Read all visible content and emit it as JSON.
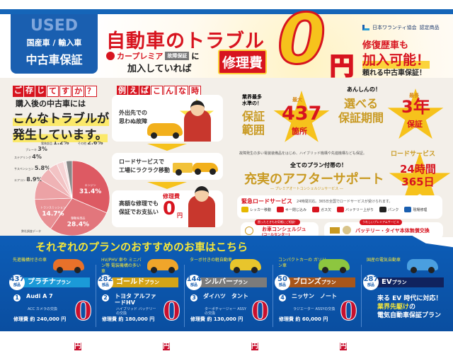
{
  "header": {
    "used_badge": {
      "used": "USED",
      "types": "国産車 / 輸入車",
      "label": "中古車保証"
    },
    "title": "自動車のトラブル",
    "brand": "カープレミア",
    "brand_tag": "故障保証",
    "particle": "に",
    "joined": "加入していれば",
    "repair_cost": "修理費",
    "zero": "0",
    "yen": "円",
    "association": "日本ワランティ協会",
    "certified": "認定商品",
    "right_line1": "修復歴車も",
    "right_line2": "加入可能！",
    "right_line3": "頼れる中古車保証！"
  },
  "left": {
    "heading_filled": [
      "ご",
      "存",
      "じ"
    ],
    "heading_outline": [
      "て",
      "す",
      "か",
      "？"
    ],
    "line1": "購入後の中古車には",
    "line2": "こんなトラブルが",
    "line3": "発生しています。",
    "source": "弊社調査データ"
  },
  "chart_data": {
    "type": "pie",
    "categories": [
      "エンジン",
      "駆動系部品",
      "トランスミッション",
      "エアコン",
      "サスペンション",
      "ステアリング",
      "ブレーキ",
      "電装部品",
      "その他"
    ],
    "values": [
      31.4,
      28.4,
      14.7,
      8.9,
      5.8,
      4,
      3,
      1.2,
      2.6
    ],
    "unit": "%",
    "colors": [
      "#dd5a63",
      "#e2767c",
      "#e88f93",
      "#eca2a5",
      "#efb3b5",
      "#f2c3c4",
      "#f5d3d4",
      "#f8e4e4",
      "#888888"
    ]
  },
  "examples": {
    "heading_filled": [
      "例",
      "え",
      "ば"
    ],
    "heading_outline": [
      "こ",
      "ん",
      "な",
      "時"
    ],
    "steps": [
      {
        "text1": "外出先での",
        "text2": "思わぬ故障"
      },
      {
        "text1": "ロードサービスで",
        "text2": "工場にラクラク移動"
      },
      {
        "text1": "高額な修理でも",
        "text2": "保証でお支払い",
        "badge": "修理費",
        "zero": "0",
        "yen": "円"
      }
    ]
  },
  "features": {
    "coverage": {
      "pre1": "業界最多",
      "pre2": "水準の！",
      "label1": "保証",
      "label2": "範囲",
      "star_top": "最大",
      "value": "437",
      "unit": "箇所"
    },
    "period": {
      "pre": "あんしんの！",
      "label1": "選べる",
      "label2": "保証期間",
      "star_top": "最長",
      "value": "3年",
      "unit": "保証"
    },
    "note": "故障発生の多い電装装備品をはじめ、ハイブリッド機構や先進機構なども保証。",
    "aftersupport": {
      "pre": "全てのプラン付帯の！",
      "title": "充実のアフターサポート",
      "sub": "― プレミアオートコンシェルジュサービス ―"
    },
    "road": {
      "label": "ロードサービス",
      "line1": "24時間",
      "line2": "365日"
    },
    "emergency": {
      "title": "緊急ロードサービス",
      "desc": "24時間対応。365日全国でロードサービスが受けられます。",
      "items": [
        "レッカー移動",
        "キー閉じ込み",
        "ガス欠",
        "バッテリー上がり",
        "パンク",
        "現場修理"
      ]
    },
    "concierge": {
      "tag": "困ったときもお気軽にご相談！",
      "title": "お車コンシェルジュ",
      "sub": "(コールセンター)"
    },
    "battery": {
      "tag": "うれしいプレミアムサービス",
      "title": "バッテリー・タイヤ本体無償交換"
    }
  },
  "plans": {
    "title": "それぞれのプランのおすすめのお車はこちら",
    "items": [
      {
        "lead": "先進機構付きの車",
        "parts": "437",
        "parts_unit": "部品",
        "name": "プラチナ",
        "suffix": "プラン",
        "color": "#1b9ad8",
        "no": "1",
        "model": "Audi A 7",
        "part": "ACC カメラの交換",
        "cost": "修理費 約 240,000 円",
        "zero": "0",
        "yen": "円"
      },
      {
        "lead": "HV/PHV 車や ミニバン等 電装機構の多い車",
        "parts": "282",
        "parts_unit": "部品",
        "name": "ゴールド",
        "suffix": "プラン",
        "color": "#d3a417",
        "no": "2",
        "model": "トヨタ アルファードHV",
        "part": "ハイブリッド バッテリーの交換",
        "cost": "修理費 約 180,000 円",
        "zero": "0",
        "yen": "円"
      },
      {
        "lead": "ターボ付きの軽自動車",
        "parts": "144",
        "parts_unit": "部品",
        "name": "シルバー",
        "suffix": "プラン",
        "color": "#7b7b7b",
        "no": "3",
        "model": "ダイハツ　タント",
        "part": "ターボチャージャー ASSYの交換",
        "cost": "修理費 約 130,000 円",
        "zero": "0",
        "yen": "円"
      },
      {
        "lead": "コンパクトカーの ガソリン車",
        "parts": "50",
        "parts_unit": "部品",
        "name": "ブロンズ",
        "suffix": "プラン",
        "color": "#a8561a",
        "no": "4",
        "model": "ニッサン　ノート",
        "part": "ラジエーター ASSYの交換",
        "cost": "修理費 約 60,000 円",
        "zero": "0",
        "yen": "円"
      },
      {
        "lead": "国産の電気自動車",
        "parts": "287",
        "parts_unit": "部品",
        "name": "EV",
        "suffix": "プラン",
        "color": "#10235e",
        "ev1": "来る EV 時代に対応！",
        "ev2": "業界先駆け",
        "ev2b": "の",
        "ev3": "電気自動車保証プラン"
      }
    ]
  }
}
